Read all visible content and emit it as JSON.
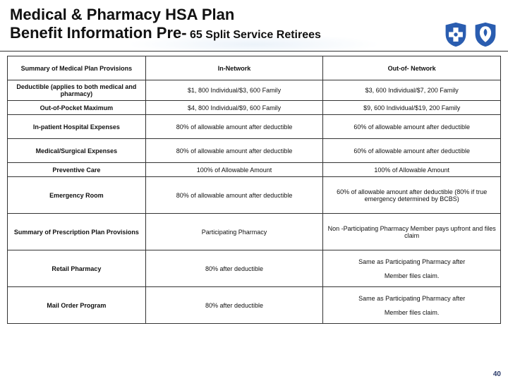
{
  "title_line1": "Medical & Pharmacy HSA Plan",
  "title_line2_main": "Benefit Information Pre-",
  "title_line2_sub": " 65 Split Service Retirees",
  "page_number": "40",
  "logo_colors": {
    "blue": "#2a5db0",
    "white": "#ffffff"
  },
  "table": {
    "border_color": "#333333",
    "columns": [
      {
        "width_pct": 28,
        "align": "center",
        "bold": true
      },
      {
        "width_pct": 36,
        "align": "center"
      },
      {
        "width_pct": 36,
        "align": "center"
      }
    ],
    "rows": [
      {
        "h": "med",
        "cells": [
          "Summary of Medical Plan Provisions",
          "In-Network",
          "Out-of- Network"
        ],
        "bold": [
          true,
          true,
          true
        ]
      },
      {
        "h": "short",
        "cells": [
          "Deductible (applies to both medical and pharmacy)",
          "$1, 800 Individual/$3, 600 Family",
          "$3, 600 Individual/$7, 200 Family"
        ]
      },
      {
        "h": "tiny",
        "cells": [
          "Out-of-Pocket Maximum",
          "$4, 800 Individual/$9, 600 Family",
          "$9, 600 Individual/$19, 200 Family"
        ]
      },
      {
        "h": "med",
        "cells": [
          "In-patient Hospital Expenses",
          "80% of allowable amount after deductible",
          "60% of allowable amount after deductible"
        ]
      },
      {
        "h": "med",
        "cells": [
          "Medical/Surgical Expenses",
          "80% of allowable amount after deductible",
          "60% of allowable amount after deductible"
        ]
      },
      {
        "h": "tiny",
        "cells": [
          "Preventive Care",
          "100% of Allowable Amount",
          "100% of Allowable Amount"
        ]
      },
      {
        "h": "tall",
        "cells": [
          "Emergency Room",
          "80% of allowable amount after deductible",
          "60% of allowable amount after deductible (80% if true emergency determined by BCBS)"
        ]
      },
      {
        "h": "tall",
        "cells": [
          "Summary of Prescription  Plan Provisions",
          "Participating Pharmacy",
          "Non -Participating Pharmacy Member pays upfront and files claim"
        ]
      },
      {
        "h": "tall",
        "cells": [
          "Retail Pharmacy",
          "80% after deductible",
          "Same as Participating Pharmacy after\n\nMember files claim."
        ]
      },
      {
        "h": "tall",
        "cells": [
          "Mail Order Program",
          "80% after deductible",
          "Same as Participating Pharmacy after\n\nMember files claim."
        ]
      }
    ]
  }
}
